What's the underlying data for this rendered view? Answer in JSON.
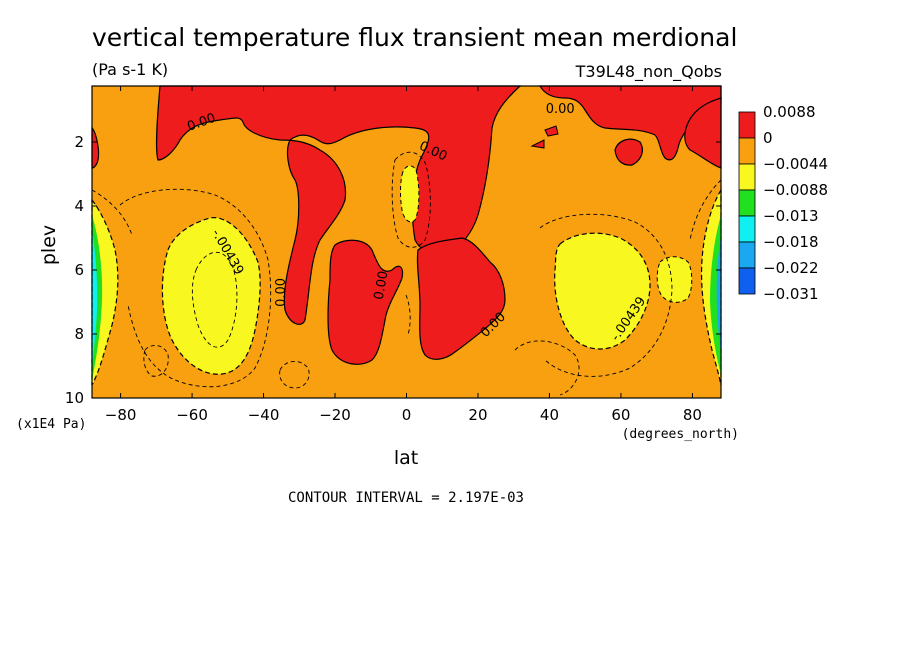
{
  "chart_data": {
    "type": "heatmap",
    "title": "vertical temperature flux transient mean merdional",
    "units": "(Pa s-1 K)",
    "dataset": "T39L48_non_Qobs",
    "xlabel": "lat",
    "xunits": "(degrees_north)",
    "ylabel": "plev",
    "yunits": "(x1E4 Pa)",
    "xlim": [
      -88,
      88
    ],
    "ylim": [
      10,
      0.25
    ],
    "x_ticks": [
      -80,
      -60,
      -40,
      -20,
      0,
      20,
      40,
      60,
      80
    ],
    "x_tick_labels": [
      "−80",
      "−60",
      "−40",
      "−20",
      "0",
      "20",
      "40",
      "60",
      "80"
    ],
    "y_ticks": [
      2,
      4,
      6,
      8,
      10
    ],
    "y_tick_labels": [
      "2",
      "4",
      "6",
      "8",
      "10"
    ],
    "contour_interval": "CONTOUR INTERVAL = 2.197E-03",
    "colorbar": {
      "labels": [
        "0.0088",
        "0",
        "−0.0044",
        "−0.0088",
        "−0.013",
        "−0.018",
        "−0.022",
        "−0.031"
      ],
      "colors": [
        "#ee1c1c",
        "#f8a010",
        "#f8f820",
        "#20e020",
        "#10f0f0",
        "#1ca8f0",
        "#1060f0"
      ]
    },
    "contour_labels": [
      {
        "text": "0.00",
        "x": -57,
        "y": 1.5,
        "rotate": -20
      },
      {
        "text": "0.00",
        "x": 7,
        "y": 2.4,
        "rotate": 25
      },
      {
        "text": "0.00",
        "x": 43,
        "y": 1.1,
        "rotate": 0
      },
      {
        "text": "0.00",
        "x": -34,
        "y": 6.7,
        "rotate": -90
      },
      {
        "text": "0.00",
        "x": -6,
        "y": 6.5,
        "rotate": -80
      },
      {
        "text": "0.00",
        "x": 25,
        "y": 7.8,
        "rotate": -45
      },
      {
        "text": "-.00439",
        "x": -51,
        "y": 5.5,
        "rotate": 60
      },
      {
        "text": "-.00439",
        "x": 63,
        "y": 7.6,
        "rotate": -55
      }
    ],
    "fields": {
      "positive_regions": "red (> 0)",
      "background": "orange (0 to -0.0044)",
      "negative_regions": "yellow/green/cyan/blue near poles and subtropics"
    }
  }
}
